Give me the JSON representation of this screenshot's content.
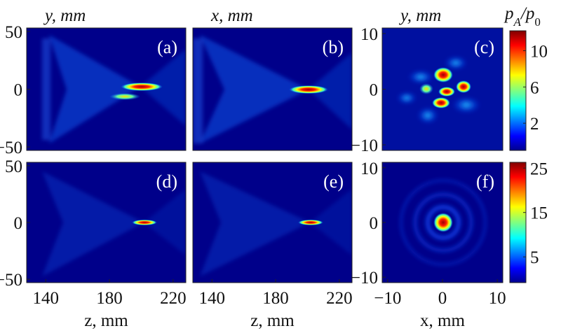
{
  "chart_data": [
    {
      "type": "heatmap",
      "panel_label": "(a)",
      "ylabel": "y, mm",
      "ylim": [
        -53,
        53
      ],
      "yticks": [
        50,
        0,
        {
          "value": -50,
          "label": "−50"
        }
      ]
    },
    {
      "type": "heatmap",
      "panel_label": "(b)",
      "ylabel": "x, mm"
    },
    {
      "type": "heatmap",
      "panel_label": "(c)",
      "ylabel": "y, mm",
      "ylim": [
        -11,
        11
      ],
      "yticks": [
        10,
        0,
        {
          "value": -10,
          "label": "−10"
        }
      ],
      "colorbar": {
        "label": [
          "p",
          "A",
          "/p",
          "0"
        ],
        "clim": [
          -1,
          12.2
        ],
        "ticks": [
          2,
          6,
          10
        ]
      }
    },
    {
      "type": "heatmap",
      "panel_label": "(d)",
      "xlabel": "z, mm",
      "ylim": [
        -53,
        53
      ],
      "yticks": [
        50,
        0,
        {
          "value": -50,
          "label": "−50"
        }
      ],
      "xlim": [
        128,
        228
      ],
      "xticks": [
        140,
        180,
        220
      ]
    },
    {
      "type": "heatmap",
      "panel_label": "(e)",
      "xlabel": "z, mm",
      "xlim": [
        128,
        228
      ],
      "xticks": [
        140,
        180,
        220
      ]
    },
    {
      "type": "heatmap",
      "panel_label": "(f)",
      "xlabel": "x, mm",
      "ylim": [
        -11,
        11
      ],
      "yticks": [
        10,
        0,
        {
          "value": -10,
          "label": "−10"
        }
      ],
      "xlim": [
        -11,
        11
      ],
      "xticks": [
        {
          "value": -10,
          "label": "−10"
        },
        0,
        10
      ],
      "colorbar": {
        "clim": [
          -0.8,
          26.3
        ],
        "ticks": [
          5,
          15,
          25
        ]
      }
    }
  ]
}
